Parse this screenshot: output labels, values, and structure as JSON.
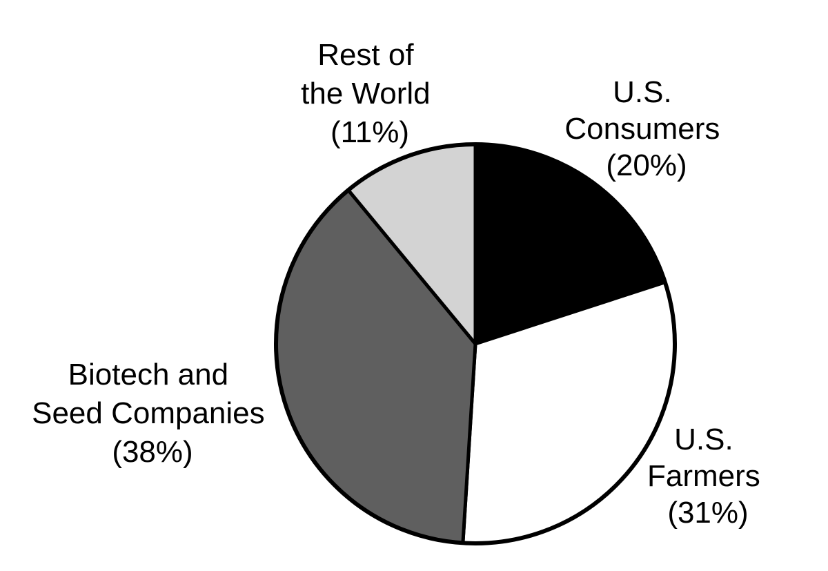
{
  "chart_data": {
    "type": "pie",
    "title": "",
    "slices": [
      {
        "label_lines": [
          "U.S.",
          "Consumers",
          "(20%)"
        ],
        "value": 20,
        "color": "#000000"
      },
      {
        "label_lines": [
          "U.S.",
          "Farmers",
          "(31%)"
        ],
        "value": 31,
        "color": "#ffffff"
      },
      {
        "label_lines": [
          "Biotech and",
          "Seed Companies",
          "(38%)"
        ],
        "value": 38,
        "color": "#5f5f5f"
      },
      {
        "label_lines": [
          "Rest of",
          "the World",
          "(11%)"
        ],
        "value": 11,
        "color": "#d3d3d3"
      }
    ],
    "start_angle_deg": 0,
    "direction": "clockwise",
    "outline_color": "#000000",
    "legend": "none"
  }
}
